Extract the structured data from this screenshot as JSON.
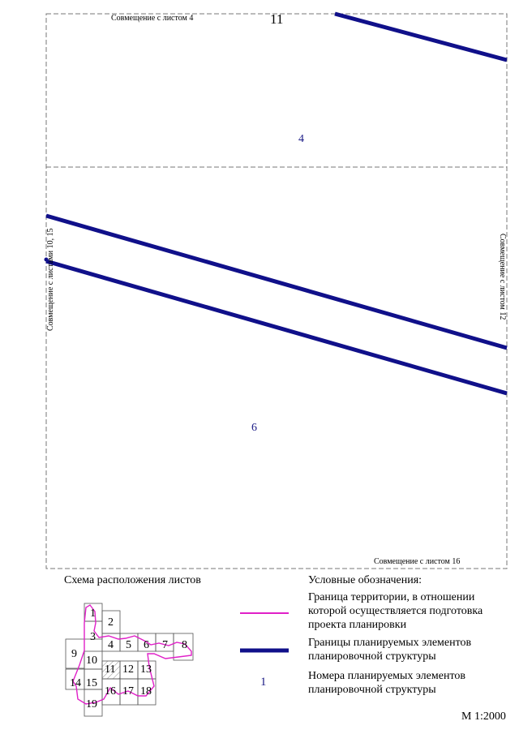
{
  "colors": {
    "element_boundary": "#10108a",
    "territory_boundary": "#e020c8",
    "frame": "#777777",
    "element_number": "#1b1b86"
  },
  "map": {
    "sheet_number": "11",
    "match_top": "Совмещение с листом 4",
    "match_left": "Совмещение с листами 10, 15",
    "match_right": "Совмещение с листом 12",
    "match_bottom": "Совмещение с листом 16",
    "element_numbers": [
      "4",
      "6"
    ]
  },
  "scheme": {
    "title": "Схема расположения листов",
    "current_sheet": "11",
    "sheets": [
      "1",
      "2",
      "3",
      "4",
      "5",
      "6",
      "7",
      "8",
      "9",
      "10",
      "11",
      "12",
      "13",
      "14",
      "15",
      "16",
      "17",
      "18",
      "19"
    ]
  },
  "legend": {
    "title": "Условные обозначения:",
    "items": [
      {
        "symbol": "territory-boundary-line",
        "text": "Граница территории, в отношении которой осуществляется подготовка проекта планировки"
      },
      {
        "symbol": "element-boundary-line",
        "text": "Границы планируемых элементов планировочной структуры"
      },
      {
        "symbol": "element-number",
        "symbol_text": "1",
        "text": "Номера планируемых элементов планировочной структуры"
      }
    ]
  },
  "scale": "М 1:2000"
}
